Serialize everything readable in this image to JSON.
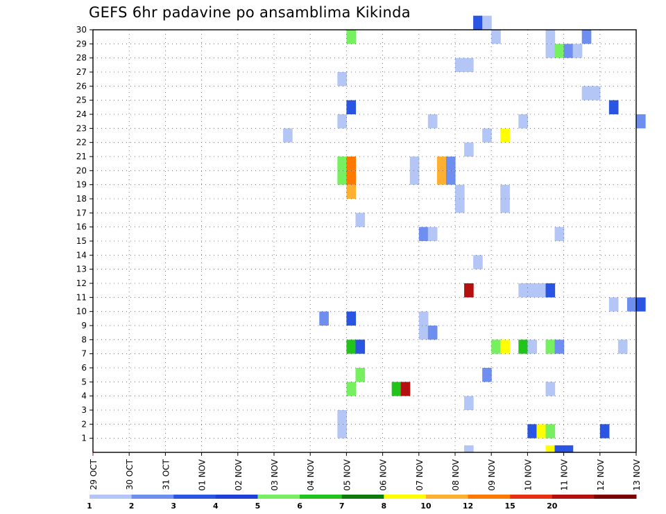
{
  "chart_data": {
    "type": "heatmap",
    "title": "GEFS 6hr padavine po ansamblima Kikinda",
    "xlabel": "",
    "ylabel": "",
    "x_ticks": [
      "29 OCT",
      "30 OCT",
      "31 OCT",
      "01 NOV",
      "02 NOV",
      "03 NOV",
      "04 NOV",
      "05 NOV",
      "06 NOV",
      "07 NOV",
      "08 NOV",
      "09 NOV",
      "10 NOV",
      "11 NOV",
      "12 NOV",
      "13 NOV"
    ],
    "x_start": "2022-10-29T00:00Z",
    "x_step_hours": 6,
    "x_range_steps": [
      0,
      60
    ],
    "y_ticks": [
      1,
      2,
      3,
      4,
      5,
      6,
      7,
      8,
      9,
      10,
      11,
      12,
      13,
      14,
      15,
      16,
      17,
      18,
      19,
      20,
      21,
      22,
      23,
      24,
      25,
      26,
      27,
      28,
      29,
      30
    ],
    "y_range": [
      0,
      30
    ],
    "grid": true,
    "colorbar": {
      "labels": [
        "1",
        "2",
        "3",
        "4",
        "5",
        "6",
        "7",
        "8",
        "10",
        "12",
        "15",
        "20"
      ],
      "colors": [
        "#b4c6f5",
        "#6f8ff0",
        "#2a55e2",
        "#1e3fd8",
        "#77f060",
        "#22c41c",
        "#0e7a0e",
        "#ffff00",
        "#ffb030",
        "#ff7800",
        "#e83010",
        "#b41010",
        "#7a0000"
      ]
    },
    "cells": [
      [
        42,
        30,
        "#2a55e2"
      ],
      [
        43,
        30,
        "#b4c6f5"
      ],
      [
        28,
        29,
        "#77f060"
      ],
      [
        44,
        29,
        "#b4c6f5"
      ],
      [
        50,
        29,
        "#b4c6f5"
      ],
      [
        54,
        29,
        "#6f8ff0"
      ],
      [
        50,
        28,
        "#b4c6f5"
      ],
      [
        51,
        28,
        "#77f060"
      ],
      [
        52,
        28,
        "#6f8ff0"
      ],
      [
        53,
        28,
        "#b4c6f5"
      ],
      [
        40,
        27,
        "#b4c6f5"
      ],
      [
        41,
        27,
        "#b4c6f5"
      ],
      [
        27,
        26,
        "#b4c6f5"
      ],
      [
        54,
        25,
        "#b4c6f5"
      ],
      [
        55,
        25,
        "#b4c6f5"
      ],
      [
        28,
        24,
        "#2a55e2"
      ],
      [
        57,
        24,
        "#2a55e2"
      ],
      [
        27,
        23,
        "#b4c6f5"
      ],
      [
        37,
        23,
        "#b4c6f5"
      ],
      [
        47,
        23,
        "#b4c6f5"
      ],
      [
        60,
        23,
        "#6f8ff0"
      ],
      [
        21,
        22,
        "#b4c6f5"
      ],
      [
        43,
        22,
        "#b4c6f5"
      ],
      [
        45,
        22,
        "#ffff00"
      ],
      [
        41,
        21,
        "#b4c6f5"
      ],
      [
        27,
        20,
        "#77f060"
      ],
      [
        28,
        20,
        "#ff7800"
      ],
      [
        35,
        20,
        "#b4c6f5"
      ],
      [
        38,
        20,
        "#ffb030"
      ],
      [
        39,
        20,
        "#6f8ff0"
      ],
      [
        27,
        19,
        "#77f060"
      ],
      [
        28,
        19,
        "#ff7800"
      ],
      [
        35,
        19,
        "#b4c6f5"
      ],
      [
        38,
        19,
        "#ffb030"
      ],
      [
        39,
        19,
        "#6f8ff0"
      ],
      [
        28,
        18,
        "#ffb030"
      ],
      [
        40,
        18,
        "#b4c6f5"
      ],
      [
        45,
        18,
        "#b4c6f5"
      ],
      [
        40,
        17,
        "#b4c6f5"
      ],
      [
        45,
        17,
        "#b4c6f5"
      ],
      [
        29,
        16,
        "#b4c6f5"
      ],
      [
        36,
        15,
        "#6f8ff0"
      ],
      [
        37,
        15,
        "#b4c6f5"
      ],
      [
        51,
        15,
        "#b4c6f5"
      ],
      [
        42,
        13,
        "#b4c6f5"
      ],
      [
        41,
        11,
        "#b41010"
      ],
      [
        47,
        11,
        "#b4c6f5"
      ],
      [
        48,
        11,
        "#b4c6f5"
      ],
      [
        49,
        11,
        "#b4c6f5"
      ],
      [
        50,
        11,
        "#2a55e2"
      ],
      [
        57,
        10,
        "#b4c6f5"
      ],
      [
        59,
        10,
        "#6f8ff0"
      ],
      [
        60,
        10,
        "#2a55e2"
      ],
      [
        25,
        9,
        "#6f8ff0"
      ],
      [
        28,
        9,
        "#2a55e2"
      ],
      [
        36,
        9,
        "#b4c6f5"
      ],
      [
        36,
        8,
        "#b4c6f5"
      ],
      [
        37,
        8,
        "#6f8ff0"
      ],
      [
        28,
        7,
        "#22c41c"
      ],
      [
        29,
        7,
        "#2a55e2"
      ],
      [
        44,
        7,
        "#77f060"
      ],
      [
        45,
        7,
        "#ffff00"
      ],
      [
        47,
        7,
        "#22c41c"
      ],
      [
        48,
        7,
        "#b4c6f5"
      ],
      [
        50,
        7,
        "#77f060"
      ],
      [
        51,
        7,
        "#6f8ff0"
      ],
      [
        58,
        7,
        "#b4c6f5"
      ],
      [
        29,
        5,
        "#77f060"
      ],
      [
        43,
        5,
        "#6f8ff0"
      ],
      [
        28,
        4,
        "#77f060"
      ],
      [
        33,
        4,
        "#22c41c"
      ],
      [
        34,
        4,
        "#b41010"
      ],
      [
        50,
        4,
        "#b4c6f5"
      ],
      [
        41,
        3,
        "#b4c6f5"
      ],
      [
        27,
        1,
        "#b4c6f5"
      ],
      [
        27,
        2,
        "#b4c6f5"
      ],
      [
        48,
        1,
        "#2a55e2"
      ],
      [
        49,
        1,
        "#ffff00"
      ],
      [
        50,
        1,
        "#77f060"
      ],
      [
        56,
        1,
        "#2a55e2"
      ],
      [
        50,
        0,
        "#ffff00"
      ],
      [
        51,
        0,
        "#2a55e2"
      ],
      [
        52,
        0,
        "#2a55e2"
      ],
      [
        41,
        0,
        "#b4c6f5"
      ]
    ]
  }
}
